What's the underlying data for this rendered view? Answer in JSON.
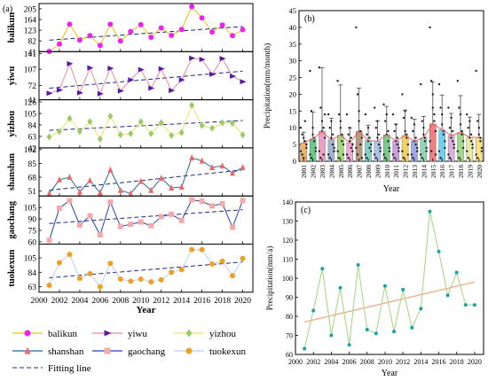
{
  "chart_data": [
    {
      "panel_label": "(a)",
      "type": "line",
      "xlabel": "Year",
      "x": [
        2001,
        2002,
        2003,
        2004,
        2005,
        2006,
        2007,
        2008,
        2009,
        2010,
        2011,
        2012,
        2013,
        2014,
        2015,
        2016,
        2017,
        2018,
        2019,
        2020
      ],
      "x_ticks": [
        2000,
        2002,
        2004,
        2006,
        2008,
        2010,
        2012,
        2014,
        2016,
        2018,
        2020
      ],
      "xlim": [
        2000,
        2021
      ],
      "fitting_line_label": "Fitting line",
      "series": [
        {
          "name": "balikun",
          "ylabel": "balikun",
          "color": "#e8c300",
          "marker": "circle",
          "marker_color": "#ee22ee",
          "yticks": [
            41,
            82,
            123,
            164,
            205
          ],
          "ylim": [
            41,
            225
          ],
          "values": [
            42,
            70,
            146,
            85,
            102,
            65,
            146,
            82,
            118,
            144,
            96,
            132,
            103,
            126,
            213,
            170,
            116,
            143,
            102,
            125
          ],
          "fit": [
            85,
            137
          ]
        },
        {
          "name": "yiwu",
          "ylabel": "yiwu",
          "color": "#ee8899",
          "marker": "triangle-right",
          "marker_color": "#5a18a8",
          "yticks": [
            41,
            72,
            107,
            141
          ],
          "ylim": [
            41,
            145
          ],
          "values": [
            55,
            62,
            119,
            56,
            110,
            54,
            109,
            60,
            84,
            106,
            66,
            108,
            61,
            84,
            131,
            128,
            96,
            130,
            92,
            80
          ],
          "fit": [
            66,
            103
          ]
        },
        {
          "name": "yizhou",
          "ylabel": "yizhou",
          "color": "#f0e066",
          "marker": "diamond",
          "marker_color": "#99cc66",
          "yticks": [
            42,
            63,
            84,
            105,
            126
          ],
          "ylim": [
            42,
            130
          ],
          "values": [
            62,
            72,
            96,
            72,
            90,
            58,
            100,
            66,
            68,
            90,
            68,
            88,
            65,
            70,
            120,
            83,
            78,
            88,
            87,
            66
          ],
          "fit": [
            74,
            92
          ]
        },
        {
          "name": "shanshan",
          "ylabel": "shanshan",
          "color": "#1f6a99",
          "marker": "triangle-up",
          "marker_color": "#ee6666",
          "yticks": [
            51,
            68,
            85,
            102
          ],
          "ylim": [
            45,
            104
          ],
          "values": [
            48,
            65,
            68,
            50,
            64,
            49,
            77,
            52,
            48,
            63,
            52,
            67,
            55,
            56,
            92,
            88,
            80,
            82,
            73,
            80
          ],
          "fit": [
            52,
            77
          ]
        },
        {
          "name": "gaochang",
          "ylabel": "gaochang",
          "color": "#2244bb",
          "marker": "square",
          "marker_color": "#f4aaaa",
          "yticks": [
            60,
            75,
            90,
            105
          ],
          "ylim": [
            57,
            120
          ],
          "values": [
            62,
            104,
            114,
            82,
            94,
            69,
            112,
            80,
            83,
            86,
            81,
            93,
            96,
            88,
            115,
            113,
            107,
            110,
            79,
            114
          ],
          "fit": [
            84,
            102
          ]
        },
        {
          "name": "tuokexun",
          "ylabel": "tuokexun",
          "color": "#bbccff",
          "marker": "circle",
          "marker_color": "#f0a020",
          "yticks": [
            63,
            84,
            105
          ],
          "ylim": [
            55,
            125
          ],
          "values": [
            65,
            98,
            110,
            75,
            82,
            63,
            97,
            74,
            71,
            74,
            70,
            73,
            84,
            88,
            117,
            117,
            96,
            100,
            79,
            104
          ],
          "fit": [
            76,
            99
          ]
        }
      ]
    },
    {
      "panel_label": "(b)",
      "type": "bar",
      "xlabel": "Year",
      "ylabel": "Precipitation(mm/month)",
      "ylim": [
        0,
        45
      ],
      "yticks": [
        0,
        5,
        10,
        15,
        20,
        25,
        30,
        35,
        40,
        45
      ],
      "categories": [
        "2001",
        "2002",
        "2003",
        "2004",
        "2005",
        "2006",
        "2007",
        "2008",
        "2009",
        "2010",
        "2011",
        "2012",
        "2013",
        "2014",
        "2015",
        "2016",
        "2017",
        "2018",
        "2019",
        "2020"
      ],
      "values": [
        5.5,
        6.7,
        8.9,
        6.4,
        7.8,
        5.5,
        8.9,
        6.2,
        6.0,
        7.9,
        6.1,
        7.7,
        6.0,
        7.0,
        11.2,
        9.4,
        7.7,
        8.6,
        7.2,
        7.1
      ],
      "errors": [
        3.2,
        8.0,
        19.0,
        6.5,
        15.0,
        4.5,
        13.0,
        4.6,
        6.0,
        8.5,
        5.0,
        7.6,
        6.6,
        6.4,
        12.5,
        10.4,
        6.6,
        11.0,
        6.0,
        6.9
      ],
      "colors": [
        "#f2b26b",
        "#67c98a",
        "#e9a2c6",
        "#9fb4d6",
        "#a6d67a",
        "#f0a8d6",
        "#b89a80",
        "#7fd2c4",
        "#a9c4e8",
        "#7ac98d",
        "#c8a0e0",
        "#f5d060",
        "#a0a8e8",
        "#90d6b6",
        "#f08080",
        "#70d0f0",
        "#d8b0d8",
        "#a0d890",
        "#e8e8a0",
        "#ffe080"
      ],
      "points": [
        [
          10,
          8,
          7,
          6,
          4,
          3,
          2,
          1,
          12,
          5
        ],
        [
          27,
          15,
          8,
          6,
          4,
          2,
          1,
          10,
          7,
          3
        ],
        [
          28,
          16,
          12,
          10,
          7,
          3,
          1,
          9,
          2,
          14
        ],
        [
          14,
          10,
          7,
          5,
          3,
          2,
          1,
          12,
          8,
          4
        ],
        [
          24,
          14,
          10,
          8,
          5,
          3,
          1,
          12,
          6,
          2
        ],
        [
          14,
          8,
          6,
          4,
          3,
          2,
          1,
          10,
          7,
          5
        ],
        [
          40,
          20,
          12,
          9,
          7,
          4,
          2,
          15,
          5,
          1
        ],
        [
          14,
          8,
          6,
          4,
          3,
          2,
          1,
          10,
          7,
          5
        ],
        [
          16,
          10,
          7,
          5,
          3,
          2,
          1,
          12,
          8,
          4
        ],
        [
          17,
          12,
          8,
          6,
          4,
          2,
          1,
          14,
          9,
          3
        ],
        [
          14,
          9,
          6,
          5,
          3,
          2,
          1,
          11,
          7,
          4
        ],
        [
          20,
          13,
          9,
          7,
          5,
          3,
          1,
          15,
          8,
          2
        ],
        [
          13,
          9,
          6,
          5,
          3,
          2,
          1,
          11,
          7,
          4
        ],
        [
          23,
          12,
          8,
          6,
          4,
          2,
          1,
          10,
          7,
          3
        ],
        [
          40,
          24,
          16,
          12,
          9,
          6,
          3,
          20,
          14,
          2
        ],
        [
          23,
          16,
          11,
          8,
          6,
          3,
          1,
          14,
          9,
          4
        ],
        [
          16,
          10,
          7,
          6,
          4,
          2,
          1,
          13,
          9,
          5
        ],
        [
          24,
          16,
          11,
          8,
          6,
          3,
          1,
          14,
          9,
          4
        ],
        [
          14,
          10,
          7,
          6,
          4,
          3,
          1,
          12,
          8,
          5
        ],
        [
          27,
          12,
          8,
          6,
          4,
          2,
          1,
          10,
          7,
          3
        ]
      ]
    },
    {
      "panel_label": "(c)",
      "type": "line",
      "xlabel": "Year",
      "ylabel": "Precipitation(mm/a)",
      "ylim": [
        60,
        140
      ],
      "yticks": [
        60,
        70,
        80,
        90,
        100,
        110,
        120,
        130,
        140
      ],
      "xlim": [
        2000,
        2021
      ],
      "x_ticks": [
        2000,
        2002,
        2004,
        2006,
        2008,
        2010,
        2012,
        2014,
        2016,
        2018,
        2020
      ],
      "x": [
        2001,
        2002,
        2003,
        2004,
        2005,
        2006,
        2007,
        2008,
        2009,
        2010,
        2011,
        2012,
        2013,
        2014,
        2015,
        2016,
        2017,
        2018,
        2019,
        2020
      ],
      "values": [
        63,
        83,
        105,
        70,
        95,
        65,
        107,
        73,
        71,
        96,
        72,
        94,
        74,
        84,
        135,
        114,
        91,
        103,
        86,
        86
      ],
      "fit": [
        77,
        98
      ],
      "line_color": "#a8d88a",
      "marker_color": "#1aa3a3",
      "fit_color": "#f4a37a"
    }
  ]
}
